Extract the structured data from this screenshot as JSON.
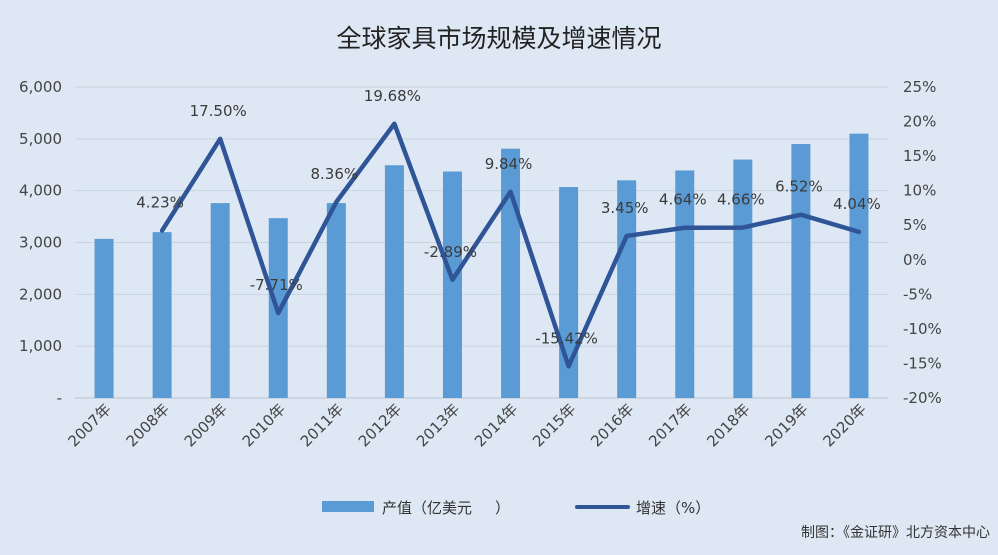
{
  "chart_data": {
    "type": "bar+line",
    "title": "全球家具市场规模及增速情况",
    "categories": [
      "2007年",
      "2008年",
      "2009年",
      "2010年",
      "2011年",
      "2012年",
      "2013年",
      "2014年",
      "2015年",
      "2016年",
      "2017年",
      "2018年",
      "2019年",
      "2020年"
    ],
    "series": [
      {
        "name": "产值（亿美元",
        "type": "bar",
        "axis": "left",
        "color": "#5b9bd5",
        "values": [
          3070,
          3200,
          3760,
          3470,
          3760,
          4490,
          4370,
          4810,
          4070,
          4200,
          4390,
          4600,
          4900,
          5100
        ]
      },
      {
        "name": "增速（%）",
        "type": "line",
        "axis": "right",
        "color": "#2f5597",
        "values": [
          null,
          4.23,
          17.5,
          -7.71,
          8.36,
          19.68,
          -2.89,
          9.84,
          -15.42,
          3.45,
          4.64,
          4.66,
          6.52,
          4.04
        ],
        "labels": [
          "",
          "4.23%",
          "17.50%",
          "-7.71%",
          "8.36%",
          "19.68%",
          "-2.89%",
          "9.84%",
          "-15.42%",
          "3.45%",
          "4.64%",
          "4.66%",
          "6.52%",
          "4.04%"
        ]
      }
    ],
    "y_left": {
      "ylim": [
        0,
        6000
      ],
      "ticks": [
        "-",
        "1,000",
        "2,000",
        "3,000",
        "4,000",
        "5,000",
        "6,000"
      ]
    },
    "y_right": {
      "ylim": [
        -20,
        25
      ],
      "ticks": [
        "-20%",
        "-15%",
        "-10%",
        "-5%",
        "0%",
        "5%",
        "10%",
        "15%",
        "20%",
        "25%"
      ]
    },
    "grid": true,
    "legend": "bottom",
    "source": "制图：《金证研》北方资本中心"
  }
}
